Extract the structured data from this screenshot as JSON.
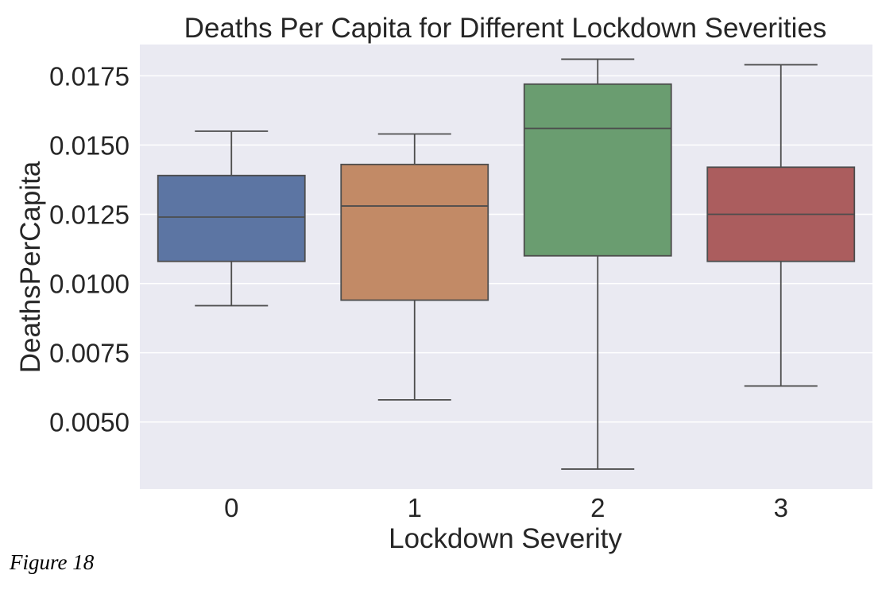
{
  "caption": "Figure 18",
  "chart_data": {
    "type": "box",
    "title": "Deaths Per Capita for Different Lockdown Severities",
    "xlabel": "Lockdown Severity",
    "ylabel": "DeathsPerCapita",
    "categories": [
      "0",
      "1",
      "2",
      "3"
    ],
    "series": [
      {
        "category": "0",
        "whisker_low": 0.0092,
        "q1": 0.0108,
        "median": 0.0124,
        "q3": 0.0139,
        "whisker_high": 0.0155
      },
      {
        "category": "1",
        "whisker_low": 0.0058,
        "q1": 0.0094,
        "median": 0.0128,
        "q3": 0.0143,
        "whisker_high": 0.0154
      },
      {
        "category": "2",
        "whisker_low": 0.0033,
        "q1": 0.011,
        "median": 0.0156,
        "q3": 0.0172,
        "whisker_high": 0.0181
      },
      {
        "category": "3",
        "whisker_low": 0.0063,
        "q1": 0.0108,
        "median": 0.0125,
        "q3": 0.0142,
        "whisker_high": 0.0179
      }
    ],
    "yticks": [
      0.005,
      0.0075,
      0.01,
      0.0125,
      0.015,
      0.0175
    ],
    "ytick_labels": [
      "0.0050",
      "0.0075",
      "0.0100",
      "0.0125",
      "0.0150",
      "0.0175"
    ],
    "ylim": [
      0.00258,
      0.01863
    ],
    "grid": true,
    "colors": {
      "boxes": [
        "#5c75a3",
        "#c28a66",
        "#6a9d70",
        "#ab5d5e"
      ],
      "lines": "#4d4d4d",
      "plot_background": "#eaeaf2",
      "grid": "#ffffff"
    }
  }
}
